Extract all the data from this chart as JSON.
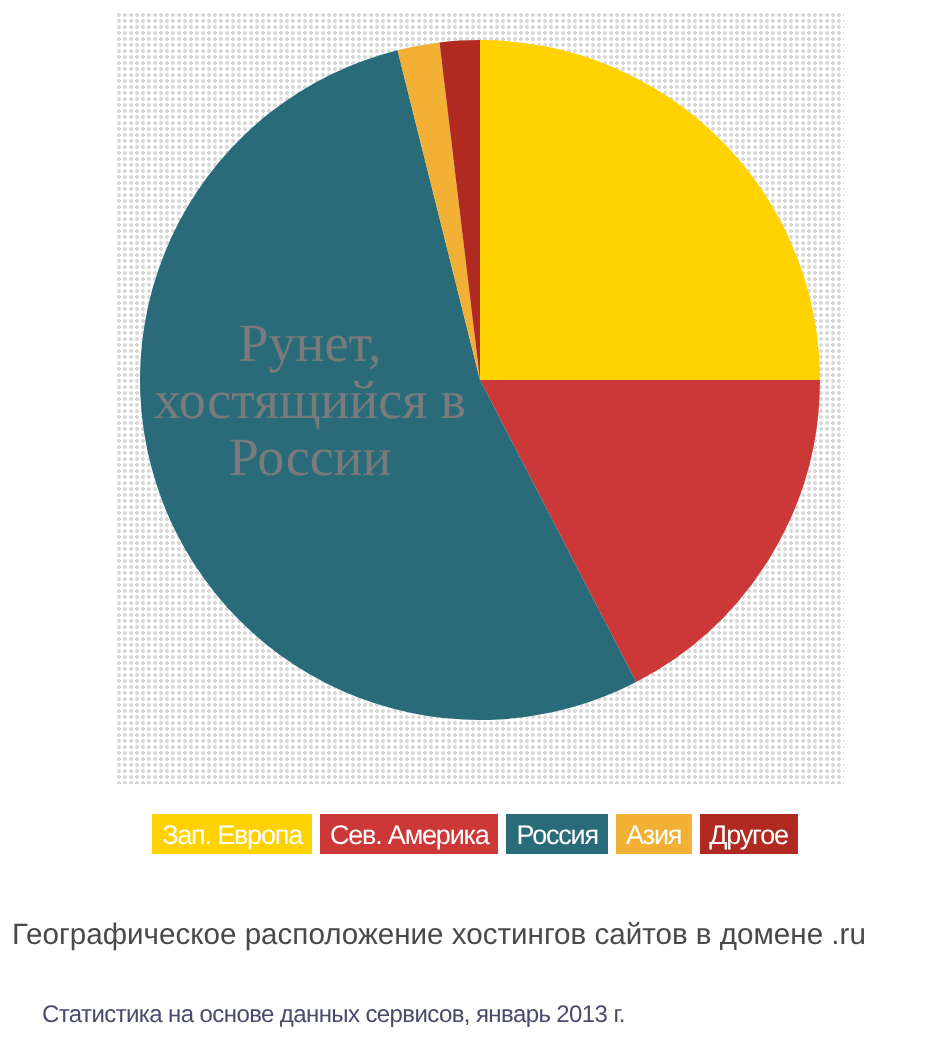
{
  "chart_data": {
    "type": "pie",
    "title": "Географическое расположение хостингов сайтов в домене .ru",
    "categories": [
      "Зап. Европа",
      "Сев. Америка",
      "Россия",
      "Азия",
      "Другое"
    ],
    "values": [
      25,
      17.4,
      53.7,
      2,
      1.9
    ],
    "colors": [
      "#ffd200",
      "#cc3737",
      "#2a6b7a",
      "#f2b135",
      "#b02a22"
    ],
    "legend": "bottom",
    "annotations": [
      "Рунет, хостящийся в России",
      "Статистика на основе данных сервисов, январь 2013 г."
    ]
  }
}
